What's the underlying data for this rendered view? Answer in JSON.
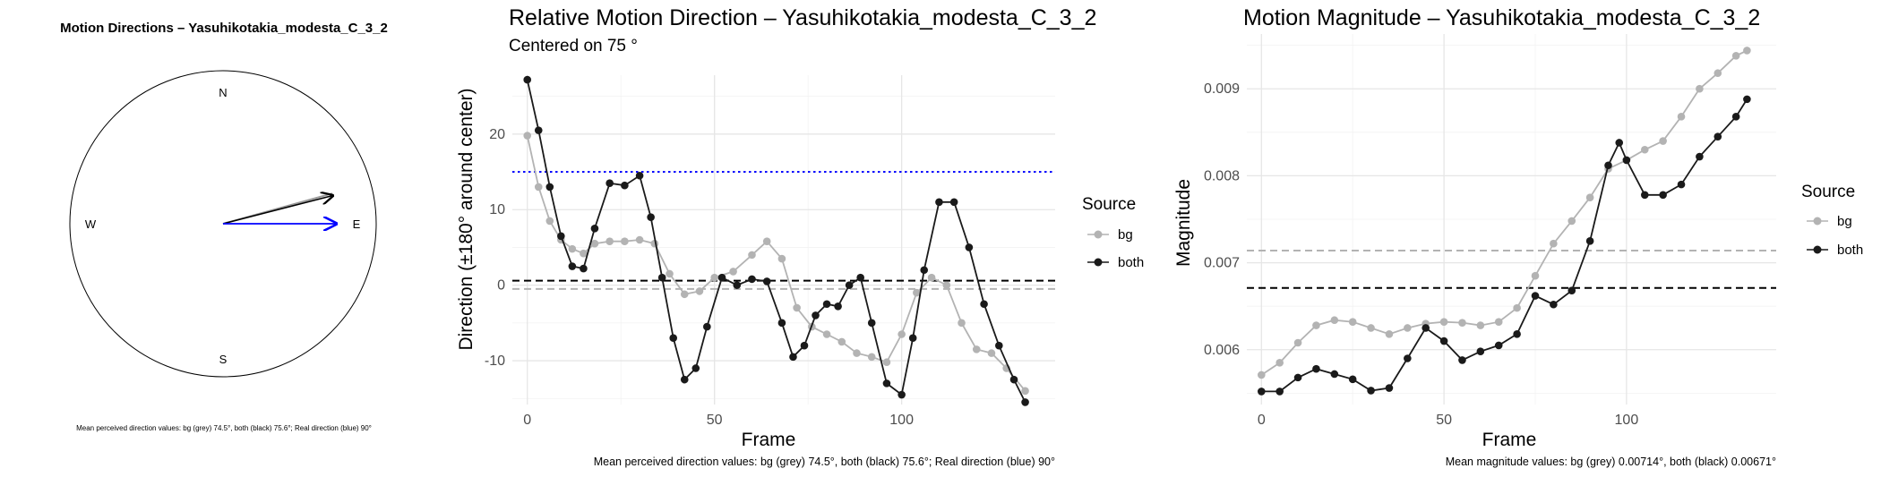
{
  "colors": {
    "bg": "#b3b3b3",
    "both": "#1a1a1a",
    "real": "#0000ff"
  },
  "compass": {
    "title": "Motion Directions – Yasuhikotakia_modesta_C_3_2",
    "labels": {
      "N": "N",
      "W": "W",
      "E": "E",
      "S": "S"
    },
    "caption": "Mean perceived direction values: bg (grey) 74.5°, both (black) 75.6°; Real direction (blue) 90°",
    "mean_bg_deg": 74.5,
    "mean_both_deg": 75.6,
    "real_deg": 90
  },
  "chart_data": [
    {
      "type": "line",
      "title": "Relative Motion Direction – Yasuhikotakia_modesta_C_3_2",
      "subtitle": "Centered on  75 °",
      "xlabel": "Frame",
      "ylabel": "Direction (±180° around center)",
      "xlim": [
        -4,
        141
      ],
      "ylim": [
        -15.8,
        27.8
      ],
      "xticks": [
        0,
        50,
        100
      ],
      "yticks": [
        -10,
        0,
        10,
        20
      ],
      "grid": true,
      "legend": {
        "title": "Source",
        "position": "right",
        "entries": [
          "bg",
          "both"
        ]
      },
      "hlines": [
        {
          "y": 15,
          "style": "dotted",
          "color": "blue"
        },
        {
          "y": 0.6,
          "style": "dashed",
          "color": "black"
        },
        {
          "y": -0.5,
          "style": "dashed",
          "color": "grey"
        }
      ],
      "caption": "Mean perceived direction values: bg (grey) 74.5°, both (black) 75.6°; Real direction (blue) 90°",
      "series": [
        {
          "name": "bg",
          "x": [
            0,
            3,
            6,
            9,
            12,
            15,
            18,
            22,
            26,
            30,
            34,
            38,
            42,
            46,
            50,
            55,
            60,
            64,
            68,
            72,
            76,
            80,
            84,
            88,
            92,
            96,
            100,
            104,
            108,
            112,
            116,
            120,
            124,
            128,
            133
          ],
          "y": [
            19.8,
            13,
            8.5,
            6,
            4.8,
            4.2,
            5.5,
            5.8,
            5.8,
            6,
            5.5,
            1.5,
            -1.2,
            -0.8,
            1,
            1.8,
            4,
            5.8,
            3.5,
            -3,
            -5.5,
            -6.5,
            -7.5,
            -9,
            -9.5,
            -10.2,
            -6.5,
            -1,
            1,
            0,
            -5,
            -8.5,
            -9,
            -11,
            -14
          ]
        },
        {
          "name": "both",
          "x": [
            0,
            3,
            6,
            9,
            12,
            15,
            18,
            22,
            26,
            30,
            33,
            36,
            39,
            42,
            45,
            48,
            52,
            56,
            60,
            64,
            68,
            71,
            74,
            77,
            80,
            83,
            86,
            89,
            92,
            96,
            100,
            103,
            106,
            110,
            114,
            118,
            122,
            126,
            130,
            133
          ],
          "y": [
            27.2,
            20.5,
            13,
            6.5,
            2.5,
            2.2,
            7.5,
            13.5,
            13.2,
            14.5,
            9,
            1,
            -7,
            -12.5,
            -11,
            -5.5,
            1,
            0,
            0.8,
            0.5,
            -5,
            -9.5,
            -8,
            -4,
            -2.5,
            -2.8,
            0,
            1,
            -5,
            -13,
            -14.5,
            -7,
            2,
            11,
            11,
            5,
            -2.5,
            -8,
            -12.5,
            -15.5
          ]
        }
      ]
    },
    {
      "type": "line",
      "title": "Motion Magnitude – Yasuhikotakia_modesta_C_3_2",
      "xlabel": "Frame",
      "ylabel": "Magnitude",
      "xlim": [
        -4,
        141
      ],
      "ylim": [
        0.00537,
        0.00963
      ],
      "xticks": [
        0,
        50,
        100
      ],
      "yticks": [
        0.006,
        0.007,
        0.008,
        0.009
      ],
      "grid": true,
      "legend": {
        "title": "Source",
        "position": "right",
        "entries": [
          "bg",
          "both"
        ]
      },
      "hlines": [
        {
          "y": 0.00714,
          "style": "dashed",
          "color": "grey"
        },
        {
          "y": 0.00671,
          "style": "dashed",
          "color": "black"
        }
      ],
      "caption": "Mean magnitude values: bg (grey) 0.00714°, both (black) 0.00671°",
      "series": [
        {
          "name": "bg",
          "x": [
            0,
            5,
            10,
            15,
            20,
            25,
            30,
            35,
            40,
            45,
            50,
            55,
            60,
            65,
            70,
            75,
            80,
            85,
            90,
            95,
            100,
            105,
            110,
            115,
            120,
            125,
            130,
            133
          ],
          "y": [
            0.00571,
            0.00585,
            0.00608,
            0.00628,
            0.00634,
            0.00632,
            0.00625,
            0.00618,
            0.00625,
            0.0063,
            0.00632,
            0.00631,
            0.00628,
            0.00632,
            0.00648,
            0.00685,
            0.00722,
            0.00748,
            0.00775,
            0.00808,
            0.00818,
            0.0083,
            0.0084,
            0.00868,
            0.009,
            0.00918,
            0.00938,
            0.00944
          ]
        },
        {
          "name": "both",
          "x": [
            0,
            5,
            10,
            15,
            20,
            25,
            30,
            35,
            40,
            45,
            50,
            55,
            60,
            65,
            70,
            75,
            80,
            85,
            90,
            95,
            98,
            100,
            105,
            110,
            115,
            120,
            125,
            130,
            133
          ],
          "y": [
            0.00552,
            0.00552,
            0.00568,
            0.00578,
            0.00572,
            0.00566,
            0.00553,
            0.00556,
            0.0059,
            0.00625,
            0.0061,
            0.00588,
            0.00598,
            0.00605,
            0.00618,
            0.00662,
            0.00652,
            0.00668,
            0.00725,
            0.00812,
            0.00838,
            0.00818,
            0.00778,
            0.00778,
            0.0079,
            0.00822,
            0.00845,
            0.00868,
            0.00888
          ]
        }
      ]
    }
  ]
}
